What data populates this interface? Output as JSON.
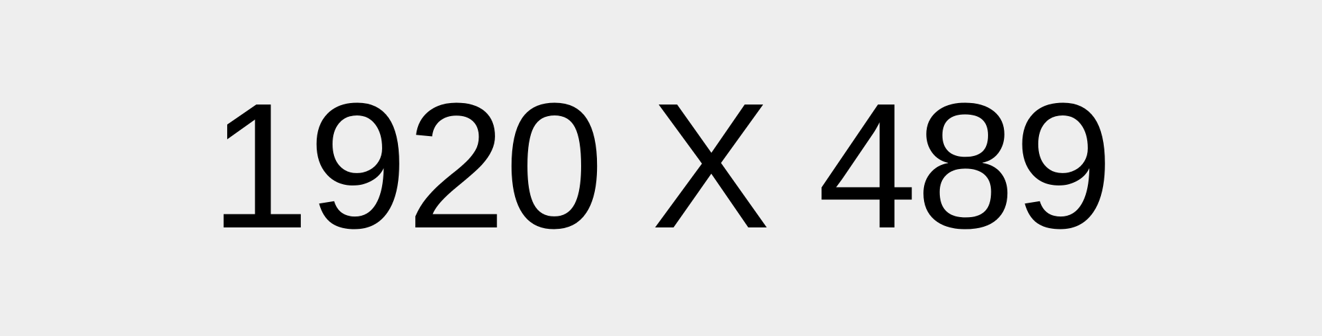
{
  "placeholder": {
    "text": "1920 X 489",
    "background_color": "#eeeeee",
    "text_color": "#000000"
  }
}
